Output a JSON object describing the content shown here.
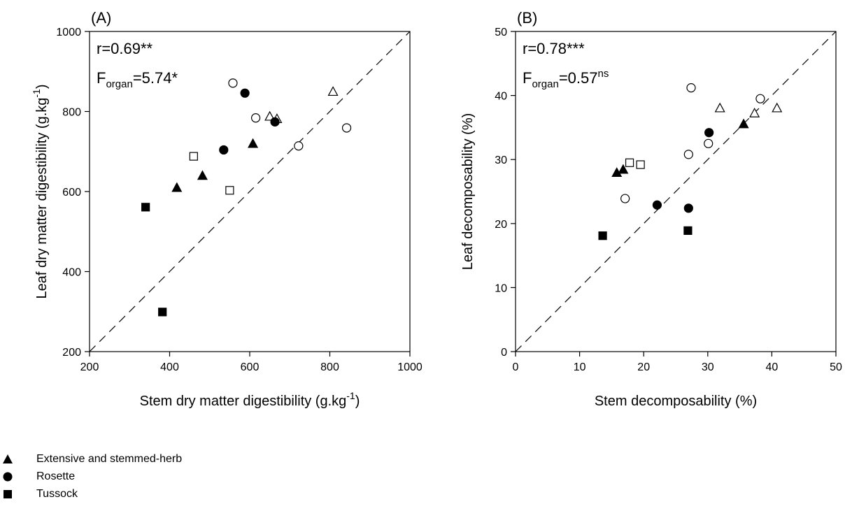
{
  "chart_data": [
    {
      "type": "scatter",
      "panel_label": "(A)",
      "xlabel": "Stem dry matter digestibility (g.kg",
      "xlabel_sup": "-1",
      "xlabel_end": ")",
      "ylabel": "Leaf dry matter digestibility (g.kg",
      "ylabel_sup": "-1",
      "ylabel_end": ")",
      "xlim": [
        200,
        1000
      ],
      "ylim": [
        200,
        1000
      ],
      "xticks": [
        "200",
        "400",
        "600",
        "800",
        "1000"
      ],
      "yticks": [
        "200",
        "400",
        "600",
        "800",
        "1000"
      ],
      "stat_r": "r=0.69**",
      "stat_f_main": "F",
      "stat_f_sub": "organ",
      "stat_f_value": "=5.74*",
      "stat_f_sup": "",
      "reference_line": "1:1 dashed",
      "grid": false,
      "series": [
        {
          "marker": "triangle",
          "filled": true,
          "points": [
            [
              418,
              609
            ],
            [
              482,
              639
            ],
            [
              608,
              719
            ]
          ]
        },
        {
          "marker": "triangle",
          "filled": false,
          "points": [
            [
              650,
              787
            ],
            [
              668,
              781
            ],
            [
              808,
              849
            ]
          ]
        },
        {
          "marker": "circle",
          "filled": true,
          "points": [
            [
              588,
              846
            ],
            [
              535,
              704
            ],
            [
              663,
              774
            ]
          ]
        },
        {
          "marker": "circle",
          "filled": false,
          "points": [
            [
              558,
              871
            ],
            [
              615,
              784
            ],
            [
              722,
              714
            ],
            [
              842,
              759
            ]
          ]
        },
        {
          "marker": "square",
          "filled": true,
          "points": [
            [
              340,
              561
            ],
            [
              382,
              299
            ]
          ]
        },
        {
          "marker": "square",
          "filled": false,
          "points": [
            [
              460,
              688
            ],
            [
              550,
              603
            ]
          ]
        }
      ]
    },
    {
      "type": "scatter",
      "panel_label": "(B)",
      "xlabel": "Stem decomposability (%)",
      "ylabel": "Leaf decomposability (%)",
      "xlim": [
        0,
        50
      ],
      "ylim": [
        0,
        50
      ],
      "xticks": [
        "0",
        "10",
        "20",
        "30",
        "40",
        "50"
      ],
      "yticks": [
        "0",
        "10",
        "20",
        "30",
        "40",
        "50"
      ],
      "stat_r": "r=0.78***",
      "stat_f_main": "F",
      "stat_f_sub": "organ",
      "stat_f_value": "=0.57",
      "stat_f_sup": "ns",
      "reference_line": "1:1 dashed",
      "grid": false,
      "series": [
        {
          "marker": "triangle",
          "filled": true,
          "points": [
            [
              15.8,
              27.9
            ],
            [
              16.8,
              28.4
            ],
            [
              35.6,
              35.5
            ]
          ]
        },
        {
          "marker": "triangle",
          "filled": false,
          "points": [
            [
              31.9,
              38.0
            ],
            [
              37.3,
              37.2
            ],
            [
              40.8,
              38.0
            ]
          ]
        },
        {
          "marker": "circle",
          "filled": true,
          "points": [
            [
              22.1,
              22.9
            ],
            [
              27.0,
              22.4
            ],
            [
              30.2,
              34.2
            ]
          ]
        },
        {
          "marker": "circle",
          "filled": false,
          "points": [
            [
              17.1,
              23.9
            ],
            [
              27.0,
              30.8
            ],
            [
              27.4,
              41.2
            ],
            [
              30.1,
              32.5
            ],
            [
              38.2,
              39.5
            ]
          ]
        },
        {
          "marker": "square",
          "filled": true,
          "points": [
            [
              13.6,
              18.1
            ],
            [
              26.9,
              18.9
            ]
          ]
        },
        {
          "marker": "square",
          "filled": false,
          "points": [
            [
              17.8,
              29.5
            ],
            [
              19.5,
              29.2
            ]
          ]
        }
      ]
    }
  ],
  "legend": {
    "items": [
      {
        "marker": "triangle",
        "label": "Extensive and stemmed-herb"
      },
      {
        "marker": "circle",
        "label": "Rosette"
      },
      {
        "marker": "square",
        "label": "Tussock"
      }
    ]
  }
}
